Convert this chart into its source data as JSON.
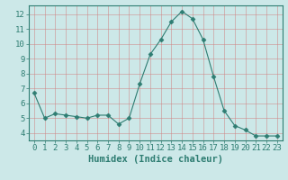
{
  "x": [
    0,
    1,
    2,
    3,
    4,
    5,
    6,
    7,
    8,
    9,
    10,
    11,
    12,
    13,
    14,
    15,
    16,
    17,
    18,
    19,
    20,
    21,
    22,
    23
  ],
  "y": [
    6.7,
    5.0,
    5.3,
    5.2,
    5.1,
    5.0,
    5.2,
    5.2,
    4.6,
    5.0,
    7.3,
    9.3,
    10.3,
    11.5,
    12.2,
    11.7,
    10.3,
    7.8,
    5.5,
    4.5,
    4.2,
    3.8,
    3.8,
    3.8
  ],
  "line_color": "#2e7d72",
  "marker": "D",
  "marker_size": 2.5,
  "bg_color": "#cce8e8",
  "grid_color": "#b0d0d0",
  "xlabel": "Humidex (Indice chaleur)",
  "ylim": [
    3.5,
    12.6
  ],
  "xlim": [
    -0.5,
    23.5
  ],
  "yticks": [
    4,
    5,
    6,
    7,
    8,
    9,
    10,
    11,
    12
  ],
  "xticks": [
    0,
    1,
    2,
    3,
    4,
    5,
    6,
    7,
    8,
    9,
    10,
    11,
    12,
    13,
    14,
    15,
    16,
    17,
    18,
    19,
    20,
    21,
    22,
    23
  ],
  "spine_color": "#2e7d72",
  "tick_color": "#2e7d72",
  "label_color": "#2e7d72",
  "xlabel_fontsize": 7.5,
  "tick_fontsize": 6.5
}
